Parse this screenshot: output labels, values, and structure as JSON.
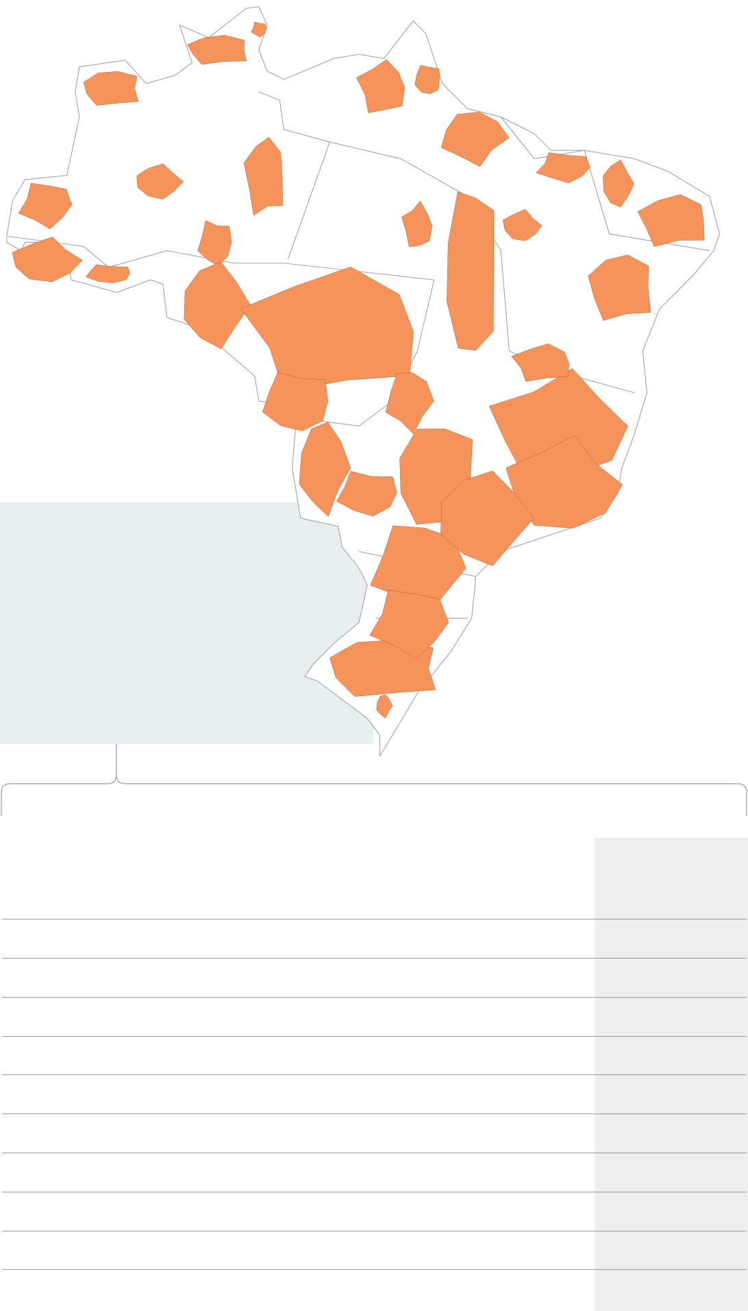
{
  "map": {
    "highlight_color": "#f5935a",
    "base_color": "#ffffff",
    "border_color": "#aaaaaa",
    "inset_background": "#e8eeee"
  },
  "table": {
    "row_count": 10,
    "rows": [
      "",
      "",
      "",
      "",
      "",
      "",
      "",
      "",
      "",
      ""
    ],
    "highlight_column_color": "#eeeeee"
  }
}
